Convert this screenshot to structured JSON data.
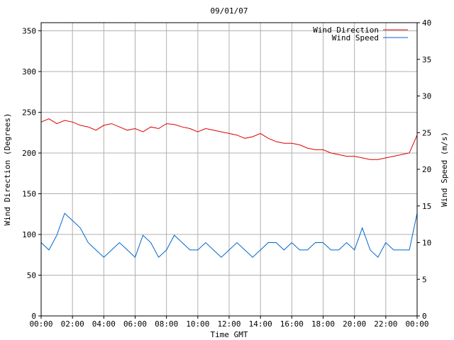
{
  "chart_data": {
    "type": "line",
    "title": "09/01/07",
    "xlabel": "Time GMT",
    "ylabel_left": "Wind Direction (Degrees)",
    "ylabel_right": "Wind Speed (m/s)",
    "xlim": [
      0,
      24
    ],
    "ylim_left": [
      0,
      360
    ],
    "ylim_right": [
      0,
      40
    ],
    "grid": true,
    "legend_position": "top-right",
    "x_ticks": [
      "00:00",
      "02:00",
      "04:00",
      "06:00",
      "08:00",
      "10:00",
      "12:00",
      "14:00",
      "16:00",
      "18:00",
      "20:00",
      "22:00",
      "00:00"
    ],
    "y_ticks_left": [
      "0",
      "50",
      "100",
      "150",
      "200",
      "250",
      "300",
      "350"
    ],
    "y_ticks_right": [
      "0",
      "5",
      "10",
      "15",
      "20",
      "25",
      "30",
      "35",
      "40"
    ],
    "series": [
      {
        "name": "Wind Direction",
        "axis": "left",
        "color": "#dd0000",
        "x": [
          0,
          0.5,
          1,
          1.5,
          2,
          2.5,
          3,
          3.5,
          4,
          4.5,
          5,
          5.5,
          6,
          6.5,
          7,
          7.5,
          8,
          8.5,
          9,
          9.5,
          10,
          10.5,
          11,
          11.5,
          12,
          12.5,
          13,
          13.5,
          14,
          14.5,
          15,
          15.5,
          16,
          16.5,
          17,
          17.5,
          18,
          18.5,
          19,
          19.5,
          20,
          20.5,
          21,
          21.5,
          22,
          22.5,
          23,
          23.5,
          24
        ],
        "values": [
          238,
          242,
          236,
          240,
          238,
          234,
          232,
          228,
          234,
          236,
          232,
          228,
          230,
          226,
          232,
          230,
          236,
          235,
          232,
          230,
          226,
          230,
          228,
          226,
          224,
          222,
          218,
          220,
          224,
          218,
          214,
          212,
          212,
          210,
          206,
          204,
          204,
          200,
          198,
          196,
          196,
          194,
          192,
          192,
          194,
          196,
          198,
          200,
          222
        ]
      },
      {
        "name": "Wind Speed",
        "axis": "right",
        "color": "#0066cc",
        "x": [
          0,
          0.5,
          1,
          1.5,
          2,
          2.5,
          3,
          3.5,
          4,
          4.5,
          5,
          5.5,
          6,
          6.5,
          7,
          7.5,
          8,
          8.5,
          9,
          9.5,
          10,
          10.5,
          11,
          11.5,
          12,
          12.5,
          13,
          13.5,
          14,
          14.5,
          15,
          15.5,
          16,
          16.5,
          17,
          17.5,
          18,
          18.5,
          19,
          19.5,
          20,
          20.5,
          21,
          21.5,
          22,
          22.5,
          23,
          23.5,
          24
        ],
        "values": [
          10,
          9,
          11,
          14,
          13,
          12,
          10,
          9,
          8,
          9,
          10,
          9,
          8,
          11,
          10,
          8,
          9,
          11,
          10,
          9,
          9,
          10,
          9,
          8,
          9,
          10,
          9,
          8,
          9,
          10,
          10,
          9,
          10,
          9,
          9,
          10,
          10,
          9,
          9,
          10,
          9,
          12,
          9,
          8,
          10,
          9,
          9,
          9,
          14
        ]
      }
    ]
  }
}
